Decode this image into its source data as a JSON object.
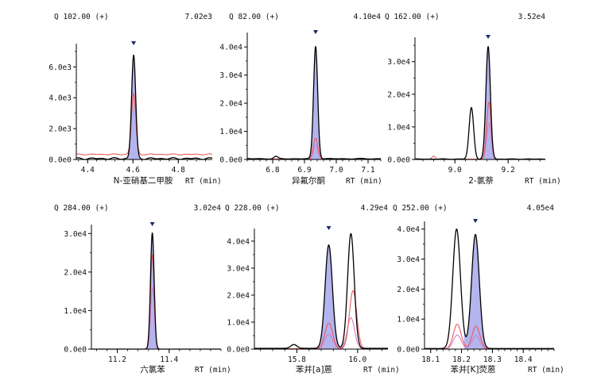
{
  "chart_data": [
    {
      "type": "line",
      "header_ion": "Q 102.00 (+)",
      "header_max": "7.02e3",
      "compound": "N-亚硝基二甲胺",
      "xlabel": "RT (min)",
      "xlim": [
        4.35,
        4.95
      ],
      "ylim": [
        0,
        7300
      ],
      "xticks": [
        4.4,
        4.6,
        4.8
      ],
      "xtick_labels": [
        "4.4",
        "4.6",
        "4.8"
      ],
      "yticks": [
        0,
        2000,
        4000,
        6000
      ],
      "ytick_labels": [
        "0.0e0",
        "2.0e3",
        "4.0e3",
        "6.0e3"
      ],
      "marker_rt": 4.603,
      "fill_range": [
        4.57,
        4.64
      ],
      "tic": {
        "baseline": 60,
        "wiggle": 60,
        "peaks": [
          {
            "rt": 4.603,
            "h": 6700,
            "w": 0.009
          }
        ]
      },
      "q1": {
        "baseline": 330,
        "wiggle": 35,
        "peaks": [
          {
            "rt": 4.603,
            "h": 3950,
            "w": 0.0095
          }
        ]
      },
      "q2": null
    },
    {
      "type": "line",
      "header_ion": "Q 82.00 (+)",
      "header_max": "4.10e4",
      "compound": "异氟尔酮",
      "xlabel": "RT (min)",
      "xlim": [
        6.72,
        7.14
      ],
      "ylim": [
        0,
        44000
      ],
      "xticks": [
        6.8,
        6.9,
        7.0,
        7.1
      ],
      "xtick_labels": [
        "6.8",
        "6.9",
        "7.0",
        "7.1"
      ],
      "yticks": [
        0,
        10000,
        20000,
        30000,
        40000
      ],
      "ytick_labels": [
        "0.0e0",
        "1.0e4",
        "2.0e4",
        "3.0e4",
        "4.0e4"
      ],
      "marker_rt": 6.935,
      "fill_range": [
        6.905,
        6.965
      ],
      "tic": {
        "baseline": 250,
        "wiggle": 150,
        "peaks": [
          {
            "rt": 6.935,
            "h": 40000,
            "w": 0.0065
          },
          {
            "rt": 6.81,
            "h": 800,
            "w": 0.006
          }
        ]
      },
      "q1": {
        "baseline": 150,
        "wiggle": 0,
        "peaks": [
          {
            "rt": 6.935,
            "h": 7500,
            "w": 0.007
          }
        ]
      },
      "q2": {
        "baseline": 150,
        "wiggle": 0,
        "peaks": [
          {
            "rt": 6.935,
            "h": 5000,
            "w": 0.007
          }
        ]
      }
    },
    {
      "type": "line",
      "header_ion": "Q 162.00 (+)",
      "header_max": "3.52e4",
      "compound": "2-氯萘",
      "xlabel": "RT (min)",
      "xlim": [
        8.85,
        9.34
      ],
      "ylim": [
        0,
        36500
      ],
      "xticks": [
        9.0,
        9.2
      ],
      "xtick_labels": [
        "9.0",
        "9.2"
      ],
      "yticks": [
        0,
        10000,
        20000,
        30000
      ],
      "ytick_labels": [
        "0.0e0",
        "1.0e4",
        "2.0e4",
        "3.0e4"
      ],
      "marker_rt": 9.125,
      "fill_range": [
        9.095,
        9.16
      ],
      "tic": {
        "baseline": 120,
        "wiggle": 80,
        "peaks": [
          {
            "rt": 9.062,
            "h": 15800,
            "w": 0.0085
          },
          {
            "rt": 9.125,
            "h": 34500,
            "w": 0.0085
          }
        ]
      },
      "q1": {
        "baseline": 100,
        "wiggle": 0,
        "peaks": [
          {
            "rt": 9.128,
            "h": 17500,
            "w": 0.0085
          },
          {
            "rt": 8.92,
            "h": 900,
            "w": 0.006
          }
        ]
      },
      "q2": {
        "baseline": 100,
        "wiggle": 0,
        "peaks": [
          {
            "rt": 9.128,
            "h": 11000,
            "w": 0.0085
          }
        ]
      }
    },
    {
      "type": "line",
      "header_ion": "Q 284.00 (+)",
      "header_max": "3.02e4",
      "compound": "六氯苯",
      "xlabel": "RT (min)",
      "xlim": [
        11.1,
        11.6
      ],
      "ylim": [
        0,
        31500
      ],
      "xticks": [
        11.2,
        11.4
      ],
      "xtick_labels": [
        "11.2",
        "11.4"
      ],
      "yticks": [
        0,
        10000,
        20000,
        30000
      ],
      "ytick_labels": [
        "0.0e0",
        "1.0e4",
        "2.0e4",
        "3.0e4"
      ],
      "marker_rt": 11.335,
      "fill_range": [
        11.305,
        11.37
      ],
      "tic": {
        "baseline": 0,
        "wiggle": 0,
        "peaks": [
          {
            "rt": 11.335,
            "h": 30200,
            "w": 0.007
          }
        ]
      },
      "q1": {
        "baseline": 0,
        "wiggle": 0,
        "peaks": [
          {
            "rt": 11.335,
            "h": 24500,
            "w": 0.0072
          }
        ]
      },
      "q2": {
        "baseline": 0,
        "wiggle": 0,
        "peaks": [
          {
            "rt": 11.336,
            "h": 16000,
            "w": 0.0075
          }
        ]
      }
    },
    {
      "type": "line",
      "header_ion": "Q 228.00 (+)",
      "header_max": "4.29e4",
      "compound": "苯并[a]蒽",
      "xlabel": "RT (min)",
      "xlim": [
        15.66,
        16.1
      ],
      "ylim": [
        0,
        43500
      ],
      "xticks": [
        15.8,
        16.0
      ],
      "xtick_labels": [
        "15.8",
        "16.0"
      ],
      "yticks": [
        0,
        10000,
        20000,
        30000,
        40000
      ],
      "ytick_labels": [
        "0.0e0",
        "1.0e4",
        "2.0e4",
        "3.0e4",
        "4.0e4"
      ],
      "marker_rt": 15.905,
      "fill_range": [
        15.86,
        15.955
      ],
      "tic": {
        "baseline": 300,
        "wiggle": 0,
        "peaks": [
          {
            "rt": 15.905,
            "h": 38300,
            "w": 0.012
          },
          {
            "rt": 15.978,
            "h": 42500,
            "w": 0.011
          },
          {
            "rt": 15.79,
            "h": 1400,
            "w": 0.01
          }
        ]
      },
      "q1": {
        "baseline": 150,
        "wiggle": 0,
        "peaks": [
          {
            "rt": 15.905,
            "h": 9500,
            "w": 0.0125
          },
          {
            "rt": 15.985,
            "h": 21500,
            "w": 0.012
          }
        ]
      },
      "q2": {
        "baseline": 100,
        "wiggle": 0,
        "peaks": [
          {
            "rt": 15.905,
            "h": 5500,
            "w": 0.0125
          },
          {
            "rt": 15.978,
            "h": 11500,
            "w": 0.012
          }
        ]
      }
    },
    {
      "type": "line",
      "header_ion": "Q 252.00 (+)",
      "header_max": "4.05e4",
      "compound": "苯并[K]荧蒽",
      "xlabel": "RT (min)",
      "xlim": [
        18.08,
        18.5
      ],
      "ylim": [
        0,
        41500
      ],
      "xticks": [
        18.1,
        18.2,
        18.3,
        18.4
      ],
      "xtick_labels": [
        "18.1",
        "18.2",
        "18.3",
        "18.4"
      ],
      "yticks": [
        0,
        10000,
        20000,
        30000,
        40000
      ],
      "ytick_labels": [
        "0.0e0",
        "1.0e4",
        "2.0e4",
        "3.0e4",
        "4.0e4"
      ],
      "marker_rt": 18.245,
      "fill_range": [
        18.208,
        18.285
      ],
      "tic": {
        "baseline": 200,
        "wiggle": 0,
        "peaks": [
          {
            "rt": 18.184,
            "h": 39800,
            "w": 0.0125
          },
          {
            "rt": 18.245,
            "h": 38000,
            "w": 0.0125
          }
        ]
      },
      "q1": {
        "baseline": 100,
        "wiggle": 0,
        "peaks": [
          {
            "rt": 18.186,
            "h": 8200,
            "w": 0.0125
          },
          {
            "rt": 18.247,
            "h": 7600,
            "w": 0.0125
          }
        ]
      },
      "q2": {
        "baseline": 100,
        "wiggle": 0,
        "peaks": [
          {
            "rt": 18.186,
            "h": 4600,
            "w": 0.0125
          },
          {
            "rt": 18.247,
            "h": 4400,
            "w": 0.0125
          }
        ]
      }
    }
  ],
  "colors": {
    "tic": "#000000",
    "q1": "#ef5a5a",
    "q2": "#d080c8",
    "fill": "#b4b4ee",
    "axis": "#000000",
    "marker": "#1a2a6a"
  }
}
